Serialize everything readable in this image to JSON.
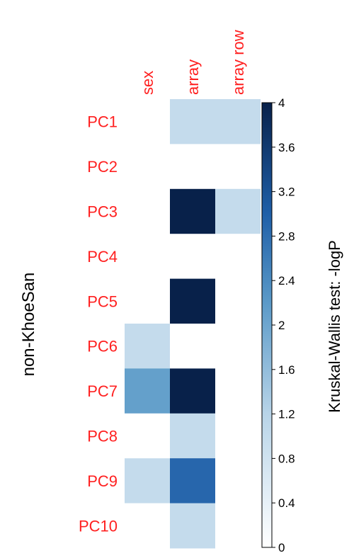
{
  "chart_data": {
    "type": "heatmap",
    "side_label": "non-KhoeSan",
    "columns": [
      "sex",
      "array",
      "array row"
    ],
    "rows": [
      "PC1",
      "PC2",
      "PC3",
      "PC4",
      "PC5",
      "PC6",
      "PC7",
      "PC8",
      "PC9",
      "PC10"
    ],
    "values": [
      [
        0,
        1.0,
        1.0
      ],
      [
        0,
        0,
        0
      ],
      [
        0,
        4.0,
        1.0
      ],
      [
        0,
        0,
        0
      ],
      [
        0,
        4.0,
        0
      ],
      [
        1.0,
        0,
        0
      ],
      [
        2.1,
        4.0,
        0
      ],
      [
        0,
        1.0,
        0
      ],
      [
        1.0,
        2.9,
        0
      ],
      [
        0,
        1.0,
        0
      ]
    ],
    "colorbar": {
      "label": "Kruskal-Wallis test: -logP",
      "min": 0,
      "max": 4,
      "ticks": [
        "0",
        "0.4",
        "0.8",
        "1.2",
        "1.6",
        "2",
        "2.4",
        "2.8",
        "3.2",
        "3.6",
        "4"
      ],
      "color_low": "#ffffff",
      "color_mid": "#b8d4e8",
      "color_high": "#08214a"
    },
    "label_color": "#ff2020"
  }
}
